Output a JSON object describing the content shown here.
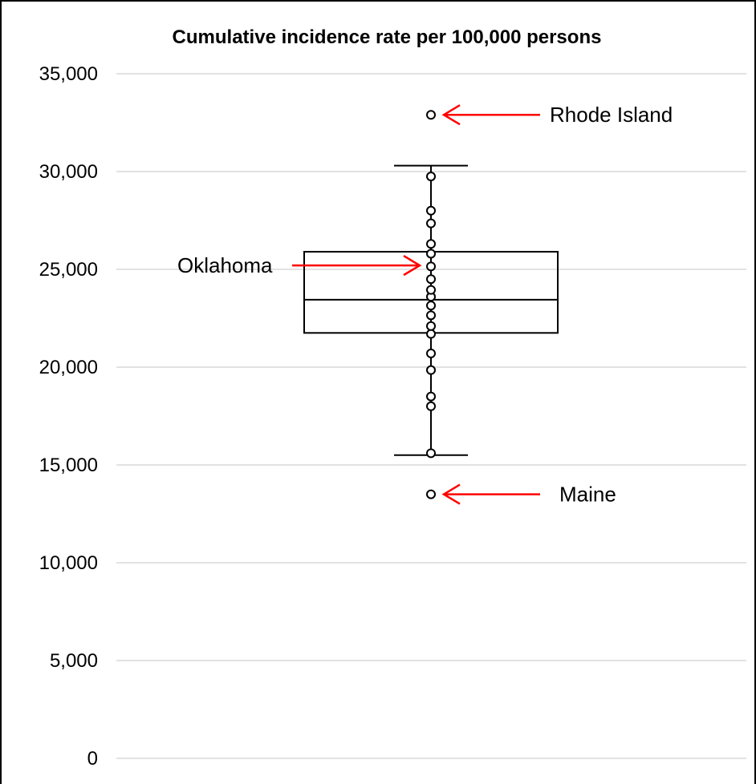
{
  "chart_data": {
    "type": "box",
    "title": "Cumulative incidence rate per 100,000 persons",
    "ylim": [
      0,
      35000
    ],
    "yticks": [
      0,
      5000,
      10000,
      15000,
      20000,
      25000,
      30000,
      35000
    ],
    "ytick_labels": [
      "0",
      "5,000",
      "10,000",
      "15,000",
      "20,000",
      "25,000",
      "30,000",
      "35,000"
    ],
    "grid": true,
    "box": {
      "whisker_low": 15500,
      "q1": 21750,
      "median": 23450,
      "q3": 25900,
      "whisker_high": 30300
    },
    "points": [
      15600,
      18000,
      18500,
      19850,
      20700,
      21700,
      22100,
      22650,
      23150,
      23600,
      23950,
      24500,
      25150,
      25800,
      26300,
      27350,
      28000,
      29750
    ],
    "outliers": [
      32900,
      13500
    ],
    "annotations": [
      {
        "label": "Rhode Island",
        "value": 32900,
        "side": "right",
        "color": "#ff0000"
      },
      {
        "label": "Oklahoma",
        "value": 25200,
        "side": "left",
        "color": "#ff0000"
      },
      {
        "label": "Maine",
        "value": 13500,
        "side": "right",
        "color": "#ff0000"
      }
    ]
  }
}
